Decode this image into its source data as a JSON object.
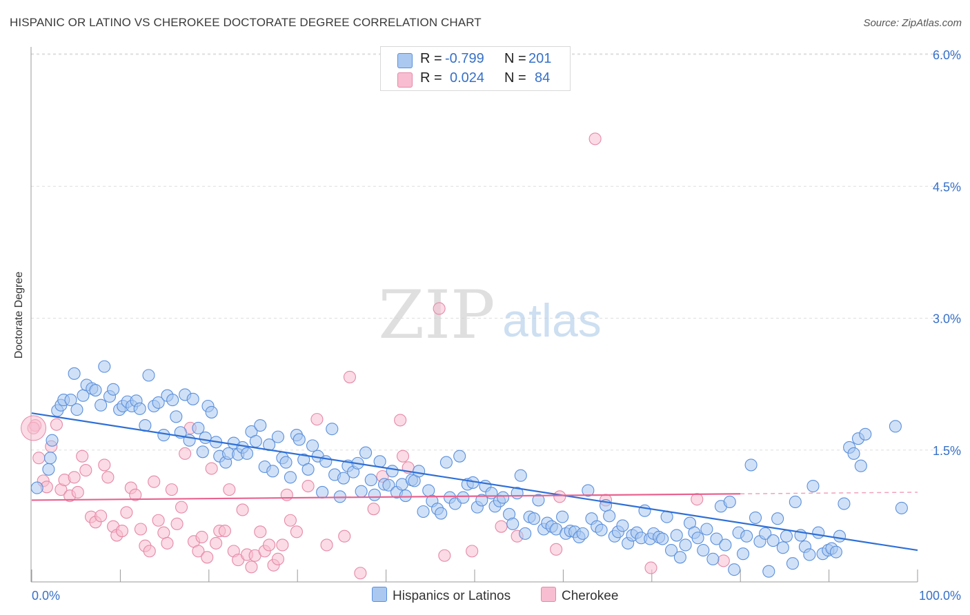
{
  "header": {
    "title": "HISPANIC OR LATINO VS CHEROKEE DOCTORATE DEGREE CORRELATION CHART",
    "source": "Source: ZipAtlas.com"
  },
  "watermark": {
    "zip": "ZIP",
    "atlas": "atlas"
  },
  "legend": {
    "rows": [
      {
        "r_label": "R =",
        "r_value": "-0.799",
        "n_label": "N =",
        "n_value": "201"
      },
      {
        "r_label": "R =",
        "r_value": "0.024",
        "n_label": "N =",
        "n_value": "84"
      }
    ]
  },
  "bottom_legend": [
    "Hispanics or Latinos",
    "Cherokee"
  ],
  "colors": {
    "blue_fill": "#aac8f0",
    "blue_stroke": "#5a8fdc",
    "blue_line": "#2e6fd6",
    "pink_fill": "#f8bdd0",
    "pink_stroke": "#e588a6",
    "pink_line": "#e8628f",
    "tick_label": "#3670c8",
    "grid": "#dddddd"
  },
  "chart_data": {
    "type": "scatter",
    "title": "HISPANIC OR LATINO VS CHEROKEE DOCTORATE DEGREE CORRELATION CHART",
    "xlabel": "",
    "ylabel": "Doctorate Degree",
    "xlim": [
      0,
      100
    ],
    "ylim": [
      0,
      6.2
    ],
    "x_tick_labels": [
      "0.0%",
      "100.0%"
    ],
    "y_ticks": [
      1.5,
      3.0,
      4.5,
      6.0
    ],
    "y_tick_labels": [
      "1.5%",
      "3.0%",
      "4.5%",
      "6.0%"
    ],
    "grid": true,
    "series": [
      {
        "name": "Hispanics or Latinos",
        "color": "#aac8f0",
        "trend": {
          "x": [
            0,
            100
          ],
          "y": [
            1.92,
            0.36
          ]
        },
        "points": [
          [
            0.6,
            1.07
          ],
          [
            1.9,
            1.28
          ],
          [
            2.1,
            1.41
          ],
          [
            2.3,
            1.61
          ],
          [
            2.9,
            1.95
          ],
          [
            3.3,
            2.01
          ],
          [
            3.6,
            2.07
          ],
          [
            4.4,
            2.07
          ],
          [
            4.8,
            2.37
          ],
          [
            5.1,
            1.96
          ],
          [
            5.8,
            2.12
          ],
          [
            6.2,
            2.24
          ],
          [
            6.8,
            2.2
          ],
          [
            7.2,
            2.18
          ],
          [
            7.8,
            2.01
          ],
          [
            8.2,
            2.45
          ],
          [
            8.8,
            2.11
          ],
          [
            9.2,
            2.19
          ],
          [
            9.9,
            1.96
          ],
          [
            10.3,
            2.0
          ],
          [
            10.8,
            2.05
          ],
          [
            11.3,
            2.0
          ],
          [
            11.8,
            2.06
          ],
          [
            12.2,
            1.97
          ],
          [
            12.8,
            1.78
          ],
          [
            13.2,
            2.35
          ],
          [
            13.8,
            2.0
          ],
          [
            14.3,
            2.04
          ],
          [
            14.9,
            1.67
          ],
          [
            15.3,
            2.12
          ],
          [
            15.9,
            2.07
          ],
          [
            16.3,
            1.88
          ],
          [
            16.8,
            1.7
          ],
          [
            17.3,
            2.13
          ],
          [
            17.8,
            1.61
          ],
          [
            18.2,
            2.08
          ],
          [
            18.8,
            1.75
          ],
          [
            19.3,
            1.48
          ],
          [
            19.6,
            1.64
          ],
          [
            19.9,
            2.0
          ],
          [
            20.3,
            1.93
          ],
          [
            20.8,
            1.59
          ],
          [
            21.2,
            1.43
          ],
          [
            21.9,
            1.36
          ],
          [
            22.2,
            1.46
          ],
          [
            22.8,
            1.58
          ],
          [
            23.3,
            1.45
          ],
          [
            23.8,
            1.53
          ],
          [
            24.3,
            1.46
          ],
          [
            24.8,
            1.71
          ],
          [
            25.3,
            1.6
          ],
          [
            25.8,
            1.78
          ],
          [
            26.3,
            1.31
          ],
          [
            26.8,
            1.56
          ],
          [
            27.2,
            1.26
          ],
          [
            27.8,
            1.65
          ],
          [
            28.3,
            1.41
          ],
          [
            28.7,
            1.36
          ],
          [
            29.2,
            1.19
          ],
          [
            29.9,
            1.67
          ],
          [
            30.2,
            1.62
          ],
          [
            30.7,
            1.39
          ],
          [
            31.2,
            1.28
          ],
          [
            31.7,
            1.55
          ],
          [
            32.3,
            1.43
          ],
          [
            32.8,
            1.02
          ],
          [
            33.2,
            1.37
          ],
          [
            33.9,
            1.74
          ],
          [
            34.2,
            1.22
          ],
          [
            34.8,
            0.97
          ],
          [
            35.2,
            1.18
          ],
          [
            35.7,
            1.32
          ],
          [
            36.3,
            1.25
          ],
          [
            36.8,
            1.35
          ],
          [
            37.2,
            1.03
          ],
          [
            37.7,
            1.47
          ],
          [
            38.3,
            1.16
          ],
          [
            38.7,
            0.99
          ],
          [
            39.3,
            1.37
          ],
          [
            39.8,
            1.11
          ],
          [
            40.3,
            1.1
          ],
          [
            40.7,
            1.26
          ],
          [
            41.2,
            1.02
          ],
          [
            41.8,
            1.11
          ],
          [
            42.2,
            0.98
          ],
          [
            42.9,
            1.16
          ],
          [
            43.2,
            1.15
          ],
          [
            43.7,
            1.26
          ],
          [
            44.2,
            0.8
          ],
          [
            44.8,
            1.04
          ],
          [
            45.2,
            0.92
          ],
          [
            45.8,
            0.83
          ],
          [
            46.2,
            0.78
          ],
          [
            46.8,
            1.36
          ],
          [
            47.2,
            0.96
          ],
          [
            47.8,
            0.89
          ],
          [
            48.3,
            1.43
          ],
          [
            48.7,
            0.96
          ],
          [
            49.2,
            1.11
          ],
          [
            49.8,
            1.13
          ],
          [
            50.3,
            0.85
          ],
          [
            50.8,
            0.93
          ],
          [
            51.2,
            1.09
          ],
          [
            51.9,
            1.01
          ],
          [
            52.3,
            0.86
          ],
          [
            52.8,
            0.92
          ],
          [
            53.2,
            0.96
          ],
          [
            53.9,
            0.77
          ],
          [
            54.3,
            0.66
          ],
          [
            54.8,
            1.01
          ],
          [
            55.2,
            1.21
          ],
          [
            55.7,
            0.55
          ],
          [
            56.2,
            0.74
          ],
          [
            56.7,
            0.72
          ],
          [
            57.2,
            0.93
          ],
          [
            57.8,
            0.6
          ],
          [
            58.2,
            0.67
          ],
          [
            58.7,
            0.63
          ],
          [
            59.2,
            0.6
          ],
          [
            59.9,
            0.74
          ],
          [
            60.3,
            0.55
          ],
          [
            60.8,
            0.58
          ],
          [
            61.3,
            0.57
          ],
          [
            61.8,
            0.51
          ],
          [
            62.2,
            0.55
          ],
          [
            62.8,
            1.04
          ],
          [
            63.2,
            0.72
          ],
          [
            63.8,
            0.63
          ],
          [
            64.3,
            0.59
          ],
          [
            64.8,
            0.87
          ],
          [
            65.2,
            0.75
          ],
          [
            65.8,
            0.52
          ],
          [
            66.2,
            0.57
          ],
          [
            66.7,
            0.64
          ],
          [
            67.3,
            0.44
          ],
          [
            67.8,
            0.53
          ],
          [
            68.3,
            0.56
          ],
          [
            68.8,
            0.5
          ],
          [
            69.2,
            0.81
          ],
          [
            69.8,
            0.49
          ],
          [
            70.2,
            0.55
          ],
          [
            70.8,
            0.51
          ],
          [
            71.2,
            0.49
          ],
          [
            71.7,
            0.74
          ],
          [
            72.2,
            0.36
          ],
          [
            72.8,
            0.53
          ],
          [
            73.2,
            0.28
          ],
          [
            73.8,
            0.42
          ],
          [
            74.3,
            0.67
          ],
          [
            74.8,
            0.56
          ],
          [
            75.2,
            0.5
          ],
          [
            75.8,
            0.36
          ],
          [
            76.2,
            0.6
          ],
          [
            76.9,
            0.26
          ],
          [
            77.3,
            0.49
          ],
          [
            77.8,
            0.86
          ],
          [
            78.3,
            0.42
          ],
          [
            78.8,
            0.91
          ],
          [
            79.3,
            0.14
          ],
          [
            79.8,
            0.56
          ],
          [
            80.3,
            0.32
          ],
          [
            80.7,
            0.52
          ],
          [
            81.2,
            1.33
          ],
          [
            81.7,
            0.73
          ],
          [
            82.2,
            0.46
          ],
          [
            82.8,
            0.55
          ],
          [
            83.2,
            0.12
          ],
          [
            83.7,
            0.47
          ],
          [
            84.2,
            0.72
          ],
          [
            84.8,
            0.39
          ],
          [
            85.2,
            0.52
          ],
          [
            85.9,
            0.21
          ],
          [
            86.2,
            0.91
          ],
          [
            86.8,
            0.53
          ],
          [
            87.3,
            0.4
          ],
          [
            87.8,
            0.31
          ],
          [
            88.2,
            1.09
          ],
          [
            88.8,
            0.56
          ],
          [
            89.3,
            0.32
          ],
          [
            89.9,
            0.36
          ],
          [
            90.3,
            0.38
          ],
          [
            90.8,
            0.34
          ],
          [
            91.2,
            0.52
          ],
          [
            91.7,
            0.89
          ],
          [
            92.3,
            1.53
          ],
          [
            92.8,
            1.46
          ],
          [
            93.3,
            1.63
          ],
          [
            93.6,
            1.32
          ],
          [
            94.1,
            1.68
          ],
          [
            97.5,
            1.77
          ],
          [
            98.2,
            0.84
          ]
        ]
      },
      {
        "name": "Cherokee",
        "color": "#f8bdd0",
        "trend": {
          "x": [
            0,
            100
          ],
          "y": [
            0.93,
            1.02
          ],
          "solid_until": 80
        },
        "points": [
          [
            0.4,
            1.78
          ],
          [
            0.8,
            1.41
          ],
          [
            1.3,
            1.15
          ],
          [
            1.7,
            1.08
          ],
          [
            2.2,
            1.54
          ],
          [
            2.8,
            1.79
          ],
          [
            3.3,
            1.05
          ],
          [
            3.7,
            1.16
          ],
          [
            4.3,
            0.98
          ],
          [
            4.8,
            1.19
          ],
          [
            5.2,
            1.02
          ],
          [
            5.7,
            1.43
          ],
          [
            6.1,
            1.27
          ],
          [
            6.7,
            0.74
          ],
          [
            7.2,
            0.68
          ],
          [
            7.8,
            0.75
          ],
          [
            8.2,
            1.33
          ],
          [
            8.6,
            1.19
          ],
          [
            9.2,
            0.63
          ],
          [
            9.6,
            0.53
          ],
          [
            10.2,
            0.58
          ],
          [
            10.7,
            0.79
          ],
          [
            11.2,
            1.07
          ],
          [
            11.7,
            0.99
          ],
          [
            12.3,
            0.6
          ],
          [
            12.8,
            0.41
          ],
          [
            13.3,
            0.35
          ],
          [
            13.8,
            1.14
          ],
          [
            14.3,
            0.7
          ],
          [
            14.9,
            0.56
          ],
          [
            15.3,
            0.44
          ],
          [
            15.8,
            1.05
          ],
          [
            16.4,
            0.66
          ],
          [
            16.9,
            0.85
          ],
          [
            17.3,
            1.46
          ],
          [
            17.9,
            1.75
          ],
          [
            18.3,
            0.46
          ],
          [
            18.8,
            0.35
          ],
          [
            19.2,
            0.51
          ],
          [
            19.8,
            0.28
          ],
          [
            20.3,
            1.29
          ],
          [
            20.8,
            0.44
          ],
          [
            21.2,
            0.58
          ],
          [
            21.8,
            0.58
          ],
          [
            22.3,
            1.05
          ],
          [
            22.8,
            0.35
          ],
          [
            23.3,
            0.25
          ],
          [
            23.8,
            0.82
          ],
          [
            24.3,
            0.31
          ],
          [
            24.8,
            0.17
          ],
          [
            25.2,
            0.3
          ],
          [
            25.8,
            0.57
          ],
          [
            26.3,
            0.35
          ],
          [
            26.8,
            0.42
          ],
          [
            27.3,
            0.19
          ],
          [
            27.8,
            0.26
          ],
          [
            28.3,
            0.42
          ],
          [
            28.8,
            0.99
          ],
          [
            29.2,
            0.7
          ],
          [
            29.9,
            0.57
          ],
          [
            31.2,
            1.09
          ],
          [
            32.2,
            1.85
          ],
          [
            33.3,
            0.42
          ],
          [
            35.3,
            0.52
          ],
          [
            35.9,
            2.33
          ],
          [
            37.1,
            0.1
          ],
          [
            38.6,
            0.83
          ],
          [
            39.6,
            1.2
          ],
          [
            41.9,
            1.43
          ],
          [
            41.6,
            1.84
          ],
          [
            42.5,
            1.3
          ],
          [
            46.0,
            3.11
          ],
          [
            46.6,
            0.3
          ],
          [
            49.7,
            0.35
          ],
          [
            53.0,
            0.63
          ],
          [
            54.8,
            0.52
          ],
          [
            59.2,
            0.37
          ],
          [
            59.6,
            0.97
          ],
          [
            63.6,
            5.04
          ],
          [
            64.8,
            0.93
          ],
          [
            69.9,
            0.16
          ],
          [
            75.1,
            0.94
          ],
          [
            78.1,
            0.24
          ],
          [
            0.2,
            1.75
          ]
        ]
      }
    ]
  }
}
